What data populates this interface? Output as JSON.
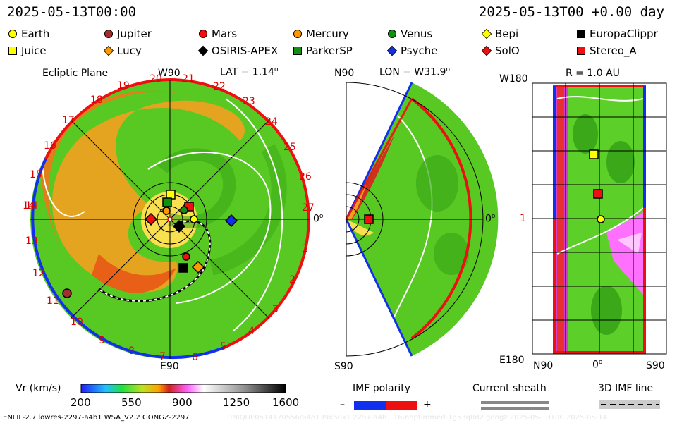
{
  "header": {
    "datetime": "2025-05-13T00:00",
    "offset": "2025-05-13T00 +0.00 day"
  },
  "legend": [
    {
      "name": "Earth",
      "color": "#ffff00",
      "shape": "circle"
    },
    {
      "name": "Jupiter",
      "color": "#a03030",
      "shape": "circle"
    },
    {
      "name": "Mars",
      "color": "#ee1010",
      "shape": "circle"
    },
    {
      "name": "Mercury",
      "color": "#ff9900",
      "shape": "circle"
    },
    {
      "name": "Venus",
      "color": "#109010",
      "shape": "circle"
    },
    {
      "name": "Bepi",
      "color": "#ffff00",
      "shape": "diamond"
    },
    {
      "name": "EuropaClippr",
      "color": "#000000",
      "shape": "square"
    },
    {
      "name": "Juice",
      "color": "#ffff00",
      "shape": "square"
    },
    {
      "name": "Lucy",
      "color": "#ff9900",
      "shape": "diamond"
    },
    {
      "name": "OSIRIS-APEX",
      "color": "#000000",
      "shape": "diamond"
    },
    {
      "name": "ParkerSP",
      "color": "#109010",
      "shape": "square"
    },
    {
      "name": "Psyche",
      "color": "#1030ee",
      "shape": "diamond"
    },
    {
      "name": "SolO",
      "color": "#ee1010",
      "shape": "diamond"
    },
    {
      "name": "Stereo_A",
      "color": "#ee1010",
      "shape": "square"
    }
  ],
  "panel_ecliptic": {
    "title": "Ecliptic Plane",
    "top_label": "W90",
    "lat_label": "LAT = 1.14",
    "right_label": "0",
    "bottom_label": "E90",
    "left_label": "14",
    "sector_numbers": [
      "20",
      "21",
      "22",
      "23",
      "24",
      "25",
      "26",
      "27",
      "1",
      "2",
      "3",
      "4",
      "5",
      "6",
      "7",
      "8",
      "9",
      "10",
      "11",
      "12",
      "13",
      "14",
      "15",
      "16",
      "17",
      "18",
      "19"
    ]
  },
  "panel_meridional": {
    "top_label": "N90",
    "lon_label": "LON = W31.9",
    "right_label": "0",
    "bottom_label": "S90"
  },
  "panel_radial": {
    "title": "R = 1.0 AU",
    "top_left": "W180",
    "mid_left": "1",
    "bottom_left": "E180",
    "x_left": "N90",
    "x_mid": "0",
    "x_right": "S90"
  },
  "colorbar": {
    "label": "Vr (km/s)",
    "ticks": [
      "200",
      "550",
      "900",
      "1250",
      "1600"
    ]
  },
  "imf": {
    "label": "IMF polarity",
    "minus": "–",
    "plus": "+"
  },
  "sheath": {
    "label": "Current sheath"
  },
  "imf3d": {
    "label": "3D IMF line"
  },
  "footer": {
    "left": "ENLIL-2.7 lowres-2297-a4b1 WSA_V2.2 GONGZ-2297",
    "right": "UNIQUE0514170556/64o139x60x1 2297-a4b1.16-noptimmed-1g53q8d2 gongz 2025-05-13T00    2025-05-14"
  },
  "chart_data": {
    "type": "heatmap",
    "title": "Vr (km/s)",
    "vr_range": [
      200,
      1600
    ],
    "time": "2025-05-13T00:00",
    "radius_AU": 1.0,
    "lat_deg": 1.14,
    "lon_deg": "W31.9"
  }
}
